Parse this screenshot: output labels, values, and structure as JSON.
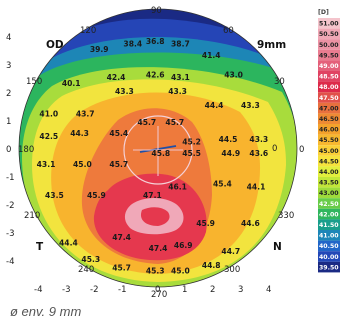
{
  "caption": "ø env. 9 mm",
  "chart_data": {
    "type": "heatmap",
    "eye_label": "OD",
    "zone_label": "9mm",
    "nasal_label": "N",
    "temporal_label": "T",
    "center_label": "0",
    "legend_unit": "[D]",
    "axes": {
      "x_ticks": [
        "-4",
        "-3",
        "-2",
        "-1",
        "0",
        "1",
        "2",
        "3",
        "4"
      ],
      "y_ticks": [
        "4",
        "3",
        "2",
        "1",
        "0",
        "-1",
        "-2",
        "-3",
        "-4"
      ],
      "xlim": [
        -4.5,
        4.5
      ],
      "ylim": [
        -4.5,
        4.5
      ]
    },
    "meridians": [
      "0",
      "30",
      "60",
      "90",
      "120",
      "150",
      "180",
      "210",
      "240",
      "270",
      "300",
      "330"
    ],
    "legend": {
      "values": [
        "51.00",
        "50.50",
        "50.00",
        "49.50",
        "49.00",
        "48.50",
        "48.00",
        "47.50",
        "47.00",
        "46.50",
        "46.00",
        "45.50",
        "45.00",
        "44.50",
        "44.00",
        "43.50",
        "43.00",
        "42.50",
        "42.00",
        "41.50",
        "41.00",
        "40.50",
        "40.00",
        "39.50"
      ],
      "colors": [
        "#f4c4cc",
        "#f0a8b6",
        "#ec92a4",
        "#e97c90",
        "#e4607a",
        "#e04262",
        "#dd2a4a",
        "#e1504a",
        "#e8703e",
        "#ee8a34",
        "#f4a22c",
        "#f7b830",
        "#fad038",
        "#f6e33e",
        "#e2ef3e",
        "#c2e63a",
        "#9edb3c",
        "#68cc48",
        "#30b65e",
        "#189e8c",
        "#1c86b8",
        "#2166c8",
        "#2248b8",
        "#1a2a84"
      ]
    },
    "values": [
      {
        "x": -2.1,
        "y": 3.6,
        "v": "39.9"
      },
      {
        "x": -0.9,
        "y": 3.8,
        "v": "38.4"
      },
      {
        "x": -0.1,
        "y": 3.9,
        "v": "36.8"
      },
      {
        "x": 0.8,
        "y": 3.8,
        "v": "38.7"
      },
      {
        "x": 1.9,
        "y": 3.4,
        "v": "41.4"
      },
      {
        "x": -3.1,
        "y": 2.4,
        "v": "40.1"
      },
      {
        "x": -1.5,
        "y": 2.6,
        "v": "42.4"
      },
      {
        "x": -0.1,
        "y": 2.7,
        "v": "42.6"
      },
      {
        "x": 0.8,
        "y": 2.6,
        "v": "43.1"
      },
      {
        "x": 2.7,
        "y": 2.7,
        "v": "43.0"
      },
      {
        "x": -1.2,
        "y": 2.1,
        "v": "43.3"
      },
      {
        "x": 0.7,
        "y": 2.1,
        "v": "43.3"
      },
      {
        "x": 2.0,
        "y": 1.6,
        "v": "44.4"
      },
      {
        "x": 3.3,
        "y": 1.6,
        "v": "43.3"
      },
      {
        "x": -3.9,
        "y": 1.3,
        "v": "41.0"
      },
      {
        "x": -2.6,
        "y": 1.3,
        "v": "43.7"
      },
      {
        "x": -0.4,
        "y": 1.0,
        "v": "45.7"
      },
      {
        "x": 0.6,
        "y": 1.0,
        "v": "45.7"
      },
      {
        "x": -3.9,
        "y": 0.5,
        "v": "42.5"
      },
      {
        "x": -2.8,
        "y": 0.6,
        "v": "44.3"
      },
      {
        "x": -1.4,
        "y": 0.6,
        "v": "45.4"
      },
      {
        "x": 1.2,
        "y": 0.3,
        "v": "45.2"
      },
      {
        "x": 2.5,
        "y": 0.4,
        "v": "44.5"
      },
      {
        "x": 3.6,
        "y": 0.4,
        "v": "43.3"
      },
      {
        "x": 0.1,
        "y": -0.1,
        "v": "45.8"
      },
      {
        "x": 1.2,
        "y": -0.1,
        "v": "45.5"
      },
      {
        "x": 2.6,
        "y": -0.1,
        "v": "44.9"
      },
      {
        "x": 3.6,
        "y": -0.1,
        "v": "43.6"
      },
      {
        "x": -4.0,
        "y": -0.5,
        "v": "43.1"
      },
      {
        "x": -2.7,
        "y": -0.5,
        "v": "45.0"
      },
      {
        "x": -1.4,
        "y": -0.5,
        "v": "45.7"
      },
      {
        "x": 0.7,
        "y": -1.3,
        "v": "46.1"
      },
      {
        "x": 2.3,
        "y": -1.2,
        "v": "45.4"
      },
      {
        "x": 3.5,
        "y": -1.3,
        "v": "44.1"
      },
      {
        "x": -0.2,
        "y": -1.6,
        "v": "47.1"
      },
      {
        "x": -3.7,
        "y": -1.6,
        "v": "43.5"
      },
      {
        "x": -2.2,
        "y": -1.6,
        "v": "45.9"
      },
      {
        "x": -1.3,
        "y": -3.1,
        "v": "47.4"
      },
      {
        "x": 0.0,
        "y": -3.5,
        "v": "47.4"
      },
      {
        "x": 0.9,
        "y": -3.4,
        "v": "46.9"
      },
      {
        "x": 1.7,
        "y": -2.6,
        "v": "45.9"
      },
      {
        "x": 3.3,
        "y": -2.6,
        "v": "44.6"
      },
      {
        "x": -3.2,
        "y": -3.3,
        "v": "44.4"
      },
      {
        "x": -2.4,
        "y": -3.9,
        "v": "45.3"
      },
      {
        "x": 2.6,
        "y": -3.6,
        "v": "44.7"
      },
      {
        "x": -1.3,
        "y": -4.2,
        "v": "45.7"
      },
      {
        "x": -0.1,
        "y": -4.3,
        "v": "45.3"
      },
      {
        "x": 0.8,
        "y": -4.3,
        "v": "45.0"
      },
      {
        "x": 1.9,
        "y": -4.1,
        "v": "44.8"
      }
    ]
  },
  "colors": {
    "ring_40": "#2545b6",
    "ring_41": "#1d86b6",
    "ring_42": "#2cb55e",
    "ring_43": "#a8dc3c",
    "ring_44": "#f2e43e",
    "ring_45": "#f8b42e",
    "ring_46": "#ee7a3c",
    "ring_47": "#e5384e",
    "ring_48": "#f0a8b8"
  }
}
